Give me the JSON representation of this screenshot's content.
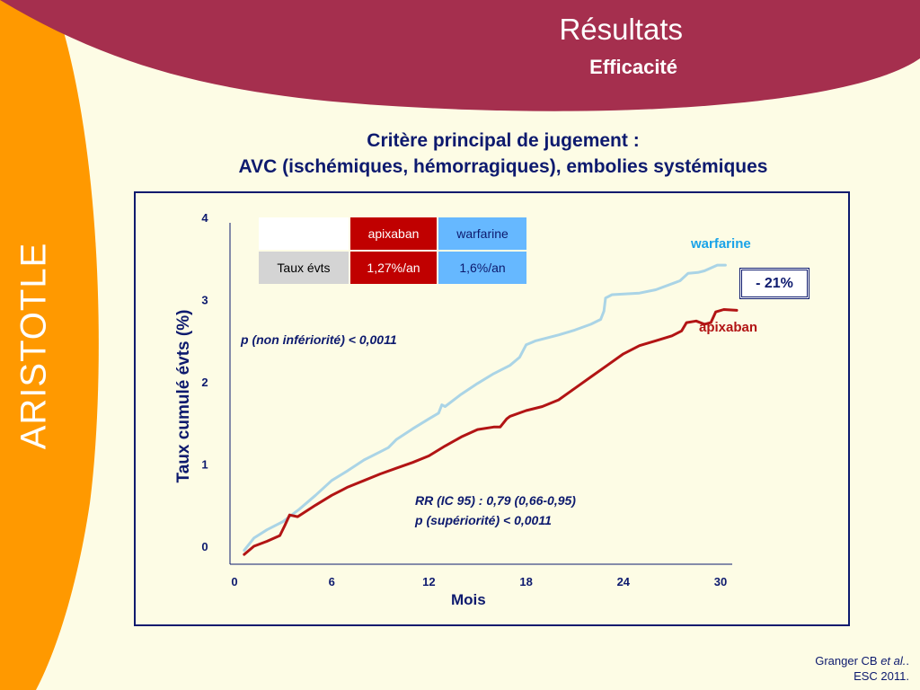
{
  "slide": {
    "side_label": "ARISTOTLE",
    "title": "Résultats",
    "subtitle": "Efficacité",
    "criterion_line1": "Critère principal de jugement :",
    "criterion_line2": "AVC (ischémiques, hémorragiques), embolies systémiques",
    "citation_author": "Granger CB ",
    "citation_etal": "et al.",
    "citation_dot": ".",
    "citation_venue": "ESC 2011.",
    "colors": {
      "banner": "#a52f4e",
      "side_band": "#ff9900",
      "background": "#fdfce5",
      "navy": "#0d1a6e",
      "apixaban": "#c00000",
      "warfarine_header": "#66b8ff"
    }
  },
  "table": {
    "col_apixaban": "apixaban",
    "col_warfarine": "warfarine",
    "row_label": "Taux évts",
    "apixaban_rate": "1,27%/an",
    "warfarine_rate": "1,6%/an"
  },
  "annotations": {
    "non_inferiority": "p (non infériorité) < 0,0011",
    "rr": "RR (IC 95) : 0,79 (0,66-0,95)",
    "superiority": "p (supériorité) < 0,0011",
    "reduction": "- 21%"
  },
  "chart_data": {
    "type": "line",
    "xlabel": "Mois",
    "ylabel": "Taux cumulé évts (%)",
    "xlim": [
      0,
      30
    ],
    "ylim": [
      0,
      4
    ],
    "x_ticks": [
      "0",
      "6",
      "12",
      "18",
      "24",
      "30"
    ],
    "y_ticks": [
      "0",
      "1",
      "2",
      "3",
      "4"
    ],
    "grid": false,
    "series": [
      {
        "name": "warfarine",
        "color": "#aad4e6",
        "label_color": "#1aa3e8",
        "points": [
          [
            0.6,
            -0.05
          ],
          [
            1.2,
            0.1
          ],
          [
            2,
            0.2
          ],
          [
            3,
            0.3
          ],
          [
            4,
            0.45
          ],
          [
            5,
            0.62
          ],
          [
            6,
            0.8
          ],
          [
            7,
            0.92
          ],
          [
            8,
            1.05
          ],
          [
            9,
            1.15
          ],
          [
            9.5,
            1.2
          ],
          [
            10,
            1.3
          ],
          [
            11,
            1.43
          ],
          [
            12,
            1.55
          ],
          [
            12.6,
            1.62
          ],
          [
            12.8,
            1.72
          ],
          [
            13,
            1.7
          ],
          [
            14,
            1.85
          ],
          [
            15,
            1.98
          ],
          [
            16,
            2.1
          ],
          [
            17,
            2.2
          ],
          [
            17.6,
            2.3
          ],
          [
            18,
            2.45
          ],
          [
            18.6,
            2.5
          ],
          [
            20,
            2.57
          ],
          [
            21,
            2.63
          ],
          [
            22,
            2.7
          ],
          [
            22.6,
            2.76
          ],
          [
            22.8,
            2.86
          ],
          [
            22.9,
            3.02
          ],
          [
            23.3,
            3.06
          ],
          [
            25,
            3.08
          ],
          [
            26,
            3.12
          ],
          [
            27.1,
            3.2
          ],
          [
            27.5,
            3.23
          ],
          [
            28,
            3.32
          ],
          [
            28.6,
            3.33
          ],
          [
            29,
            3.35
          ],
          [
            29.8,
            3.42
          ],
          [
            30.3,
            3.42
          ]
        ]
      },
      {
        "name": "apixaban",
        "color": "#b21414",
        "label_color": "#b21414",
        "points": [
          [
            0.6,
            -0.1
          ],
          [
            1.2,
            0
          ],
          [
            2,
            0.06
          ],
          [
            2.8,
            0.13
          ],
          [
            3.1,
            0.25
          ],
          [
            3.4,
            0.38
          ],
          [
            3.9,
            0.36
          ],
          [
            5,
            0.5
          ],
          [
            6,
            0.62
          ],
          [
            7,
            0.72
          ],
          [
            8,
            0.8
          ],
          [
            9,
            0.88
          ],
          [
            10,
            0.95
          ],
          [
            11,
            1.02
          ],
          [
            12,
            1.1
          ],
          [
            13,
            1.22
          ],
          [
            14,
            1.33
          ],
          [
            15,
            1.42
          ],
          [
            16,
            1.45
          ],
          [
            16.4,
            1.45
          ],
          [
            16.8,
            1.55
          ],
          [
            17,
            1.58
          ],
          [
            18,
            1.65
          ],
          [
            19,
            1.7
          ],
          [
            20,
            1.78
          ],
          [
            21,
            1.92
          ],
          [
            22,
            2.06
          ],
          [
            23,
            2.2
          ],
          [
            24,
            2.34
          ],
          [
            25,
            2.44
          ],
          [
            26,
            2.5
          ],
          [
            27,
            2.56
          ],
          [
            27.6,
            2.62
          ],
          [
            27.9,
            2.72
          ],
          [
            28.5,
            2.74
          ],
          [
            29,
            2.7
          ],
          [
            29.4,
            2.72
          ],
          [
            29.7,
            2.85
          ],
          [
            30.2,
            2.88
          ],
          [
            31,
            2.87
          ]
        ]
      }
    ]
  }
}
